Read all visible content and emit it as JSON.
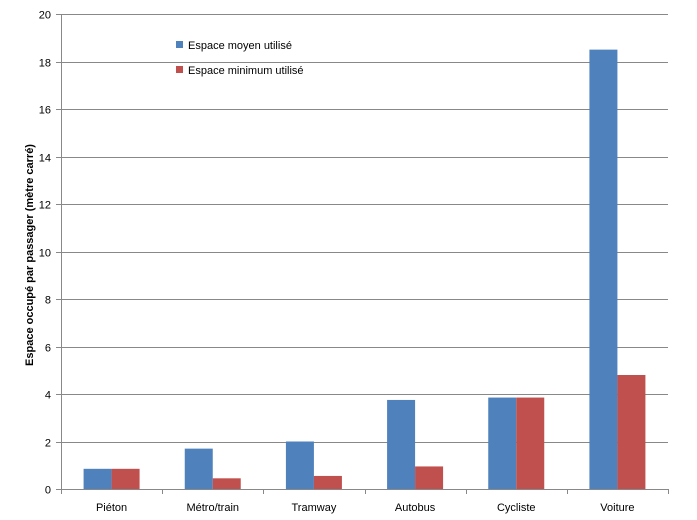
{
  "chart_data": {
    "type": "bar",
    "title": "",
    "xlabel": "",
    "ylabel": "Espace occupé par passager (mètre carré)",
    "ylim": [
      0,
      20
    ],
    "yticks": [
      0,
      2,
      4,
      6,
      8,
      10,
      12,
      14,
      16,
      18,
      20
    ],
    "grid": true,
    "legend_position": "top-left",
    "categories": [
      "Piéton",
      "Métro/train",
      "Tramway",
      "Autobus",
      "Cycliste",
      "Voiture"
    ],
    "series": [
      {
        "name": "Espace moyen utilisé",
        "color": "#4f81bd",
        "values": [
          0.85,
          1.7,
          2.0,
          3.75,
          3.85,
          18.5
        ]
      },
      {
        "name": "Espace minimum utilisé",
        "color": "#c0504d",
        "values": [
          0.85,
          0.45,
          0.55,
          0.95,
          3.85,
          4.8
        ]
      }
    ]
  }
}
